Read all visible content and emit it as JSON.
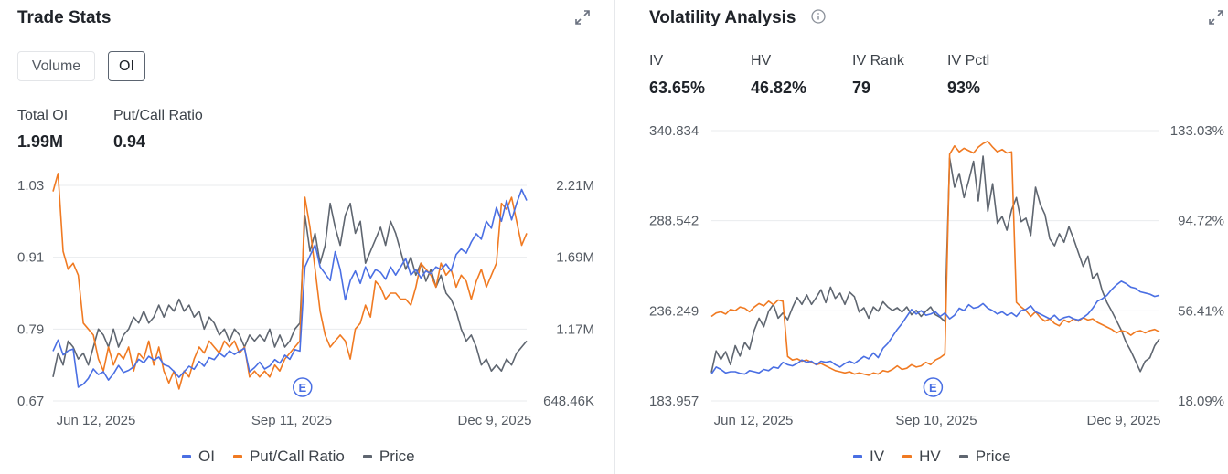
{
  "trade_stats": {
    "title": "Trade Stats",
    "toggles": {
      "volume": "Volume",
      "oi": "OI"
    },
    "stats": [
      {
        "label": "Total OI",
        "value": "1.99M"
      },
      {
        "label": "Put/Call Ratio",
        "value": "0.94"
      }
    ],
    "legend": [
      "OI",
      "Put/Call Ratio",
      "Price"
    ],
    "earnings_marker": "E"
  },
  "volatility": {
    "title": "Volatility Analysis",
    "stats": [
      {
        "label": "IV",
        "value": "63.65%"
      },
      {
        "label": "HV",
        "value": "46.82%"
      },
      {
        "label": "IV Rank",
        "value": "79"
      },
      {
        "label": "IV Pctl",
        "value": "93%"
      }
    ],
    "legend": [
      "IV",
      "HV",
      "Price"
    ],
    "earnings_marker": "E"
  },
  "colors": {
    "blue": "#4a6fe3",
    "orange": "#f07a22",
    "gray": "#5f6670",
    "grid": "#e9ebee"
  },
  "chart_data": [
    {
      "type": "line",
      "title": "",
      "x_ticks": [
        "Jun 12, 2025",
        "Sep 11, 2025",
        "Dec 9, 2025"
      ],
      "left_ticks": [
        "1.03",
        "0.91",
        "0.79",
        "0.67"
      ],
      "right_ticks": [
        "2.21M",
        "1.69M",
        "1.17M",
        "648.46K"
      ],
      "left_range": [
        0.67,
        1.03
      ],
      "right_range": [
        648460,
        2210000
      ],
      "series": [
        {
          "name": "OI",
          "axis": "right",
          "color": "#4a6fe3",
          "values": [
            1010000,
            1090000,
            982000,
            1012000,
            1025000,
            748000,
            770000,
            812000,
            880000,
            840000,
            860000,
            800000,
            845000,
            905000,
            855000,
            870000,
            895000,
            950000,
            925000,
            972000,
            945000,
            966000,
            912000,
            898000,
            862000,
            820000,
            860000,
            900000,
            878000,
            935000,
            900000,
            962000,
            948000,
            995000,
            968000,
            1012000,
            985000,
            1010000,
            1030000,
            860000,
            890000,
            930000,
            880000,
            902000,
            948000,
            922000,
            980000,
            950000,
            1020000,
            1010000,
            1620000,
            1700000,
            1780000,
            1620000,
            1570000,
            1520000,
            1730000,
            1600000,
            1380000,
            1520000,
            1590000,
            1500000,
            1620000,
            1540000,
            1600000,
            1580000,
            1530000,
            1620000,
            1560000,
            1620000,
            1680000,
            1560000,
            1600000,
            1540000,
            1590000,
            1570000,
            1620000,
            1600000,
            1640000,
            1590000,
            1710000,
            1750000,
            1720000,
            1800000,
            1860000,
            1820000,
            1950000,
            1900000,
            2050000,
            1950000,
            2100000,
            1960000,
            2080000,
            2180000,
            2100000
          ]
        },
        {
          "name": "Put/Call Ratio",
          "axis": "left",
          "color": "#f07a22",
          "values": [
            1.02,
            1.05,
            0.92,
            0.89,
            0.9,
            0.88,
            0.8,
            0.79,
            0.78,
            0.74,
            0.72,
            0.76,
            0.73,
            0.75,
            0.74,
            0.76,
            0.72,
            0.75,
            0.74,
            0.77,
            0.73,
            0.76,
            0.72,
            0.7,
            0.72,
            0.69,
            0.72,
            0.71,
            0.74,
            0.76,
            0.75,
            0.77,
            0.76,
            0.75,
            0.77,
            0.76,
            0.77,
            0.75,
            0.76,
            0.71,
            0.72,
            0.71,
            0.72,
            0.71,
            0.73,
            0.72,
            0.74,
            0.75,
            0.76,
            0.77,
            1.01,
            0.96,
            0.89,
            0.82,
            0.78,
            0.76,
            0.77,
            0.78,
            0.77,
            0.74,
            0.79,
            0.8,
            0.83,
            0.81,
            0.87,
            0.86,
            0.84,
            0.85,
            0.85,
            0.84,
            0.84,
            0.83,
            0.86,
            0.9,
            0.89,
            0.88,
            0.86,
            0.9,
            0.88,
            0.89,
            0.86,
            0.88,
            0.87,
            0.84,
            0.87,
            0.89,
            0.86,
            0.88,
            0.9,
            1.0,
            0.99,
            1.01,
            0.97,
            0.93,
            0.95
          ]
        },
        {
          "name": "Price",
          "axis": "left",
          "color": "#5f6670",
          "values": [
            0.71,
            0.75,
            0.73,
            0.77,
            0.76,
            0.74,
            0.75,
            0.73,
            0.76,
            0.79,
            0.78,
            0.76,
            0.79,
            0.76,
            0.78,
            0.79,
            0.81,
            0.8,
            0.82,
            0.8,
            0.81,
            0.83,
            0.81,
            0.83,
            0.82,
            0.84,
            0.82,
            0.83,
            0.81,
            0.82,
            0.79,
            0.81,
            0.8,
            0.78,
            0.79,
            0.77,
            0.79,
            0.78,
            0.76,
            0.78,
            0.77,
            0.78,
            0.77,
            0.79,
            0.76,
            0.78,
            0.76,
            0.77,
            0.79,
            0.8,
            0.98,
            0.92,
            0.95,
            0.9,
            0.93,
            1.0,
            0.96,
            0.93,
            0.98,
            1.0,
            0.95,
            0.97,
            0.9,
            0.92,
            0.94,
            0.96,
            0.93,
            0.97,
            0.95,
            0.92,
            0.89,
            0.91,
            0.88,
            0.9,
            0.87,
            0.89,
            0.86,
            0.88,
            0.85,
            0.84,
            0.82,
            0.79,
            0.77,
            0.78,
            0.76,
            0.73,
            0.74,
            0.72,
            0.73,
            0.72,
            0.74,
            0.73,
            0.75,
            0.76,
            0.77
          ]
        }
      ]
    },
    {
      "type": "line",
      "title": "",
      "x_ticks": [
        "Jun 12, 2025",
        "Sep 10, 2025",
        "Dec 9, 2025"
      ],
      "left_ticks": [
        "340.834",
        "288.542",
        "236.249",
        "183.957"
      ],
      "right_ticks": [
        "133.03%",
        "94.72%",
        "56.41%",
        "18.09%"
      ],
      "left_range": [
        183.957,
        340.834
      ],
      "right_range": [
        18.09,
        133.03
      ],
      "series": [
        {
          "name": "IV",
          "axis": "right",
          "color": "#4a6fe3",
          "values": [
            29.5,
            32.5,
            31.5,
            30.0,
            30.5,
            30.5,
            29.8,
            29.5,
            31.0,
            30.5,
            30.0,
            31.5,
            31.0,
            32.5,
            32.0,
            34.5,
            33.5,
            33.0,
            34.0,
            35.5,
            34.5,
            35.0,
            33.5,
            35.0,
            34.5,
            35.0,
            33.5,
            32.5,
            34.0,
            35.0,
            34.0,
            35.5,
            37.0,
            36.0,
            38.5,
            36.5,
            40.5,
            42.5,
            45.5,
            48.5,
            51.0,
            54.0,
            57.0,
            55.0,
            56.5,
            54.5,
            55.0,
            56.0,
            54.0,
            55.5,
            53.0,
            54.5,
            57.5,
            56.5,
            59.0,
            57.5,
            58.0,
            59.5,
            57.5,
            56.5,
            55.0,
            56.0,
            54.5,
            55.5,
            54.0,
            56.5,
            57.0,
            58.5,
            56.0,
            55.0,
            54.0,
            53.0,
            54.5,
            52.5,
            53.5,
            54.0,
            53.0,
            52.5,
            53.5,
            55.0,
            57.5,
            60.5,
            61.5,
            63.0,
            65.5,
            67.5,
            69.0,
            68.0,
            66.5,
            66.0,
            64.5,
            64.0,
            63.5,
            62.5,
            63.0
          ]
        },
        {
          "name": "HV",
          "axis": "right",
          "color": "#f07a22",
          "values": [
            54.0,
            55.5,
            56.0,
            55.0,
            57.0,
            56.5,
            58.0,
            57.5,
            56.0,
            58.0,
            59.5,
            58.5,
            60.5,
            59.0,
            61.0,
            60.5,
            37.0,
            35.5,
            36.0,
            35.0,
            35.5,
            34.5,
            33.5,
            34.0,
            33.0,
            32.0,
            31.0,
            30.5,
            30.0,
            30.5,
            29.5,
            30.0,
            29.5,
            29.0,
            30.0,
            29.5,
            31.0,
            30.5,
            31.5,
            33.0,
            31.5,
            32.0,
            33.5,
            32.5,
            33.0,
            34.5,
            33.5,
            35.5,
            36.5,
            38.0,
            123.0,
            126.5,
            124.0,
            125.5,
            124.5,
            123.5,
            126.0,
            127.5,
            128.5,
            126.0,
            124.0,
            125.0,
            123.5,
            124.0,
            60.0,
            58.0,
            56.5,
            54.0,
            56.0,
            53.5,
            52.0,
            53.0,
            51.0,
            50.0,
            52.5,
            51.5,
            53.0,
            52.0,
            53.5,
            52.5,
            53.0,
            51.5,
            50.5,
            49.5,
            48.5,
            47.0,
            48.0,
            47.5,
            46.0,
            47.5,
            48.0,
            47.0,
            48.0,
            48.5,
            47.5
          ]
        },
        {
          "name": "Price",
          "axis": "left",
          "color": "#5f6670",
          "values": [
            200.5,
            213.0,
            208.0,
            212.5,
            205.0,
            216.0,
            210.0,
            218.0,
            214.0,
            225.0,
            232.0,
            227.0,
            236.0,
            240.0,
            232.0,
            235.0,
            231.0,
            238.0,
            244.0,
            240.0,
            245.5,
            240.0,
            244.0,
            248.5,
            241.0,
            250.0,
            243.5,
            246.5,
            240.0,
            247.0,
            244.5,
            235.5,
            238.0,
            232.0,
            238.5,
            236.0,
            241.5,
            238.5,
            236.5,
            238.0,
            235.5,
            238.5,
            234.0,
            236.5,
            233.0,
            236.0,
            238.5,
            234.0,
            232.5,
            230.0,
            325.0,
            308.0,
            316.0,
            302.0,
            312.0,
            323.0,
            300.0,
            326.0,
            294.0,
            310.0,
            287.0,
            291.0,
            283.0,
            295.0,
            302.0,
            288.0,
            290.0,
            280.0,
            308.0,
            298.0,
            292.0,
            278.0,
            274.0,
            281.0,
            276.0,
            285.0,
            278.0,
            270.0,
            262.0,
            268.0,
            255.0,
            258.0,
            248.0,
            241.0,
            236.0,
            230.5,
            225.0,
            218.0,
            213.0,
            207.0,
            201.0,
            207.0,
            209.0,
            216.0,
            220.0
          ]
        }
      ]
    }
  ]
}
